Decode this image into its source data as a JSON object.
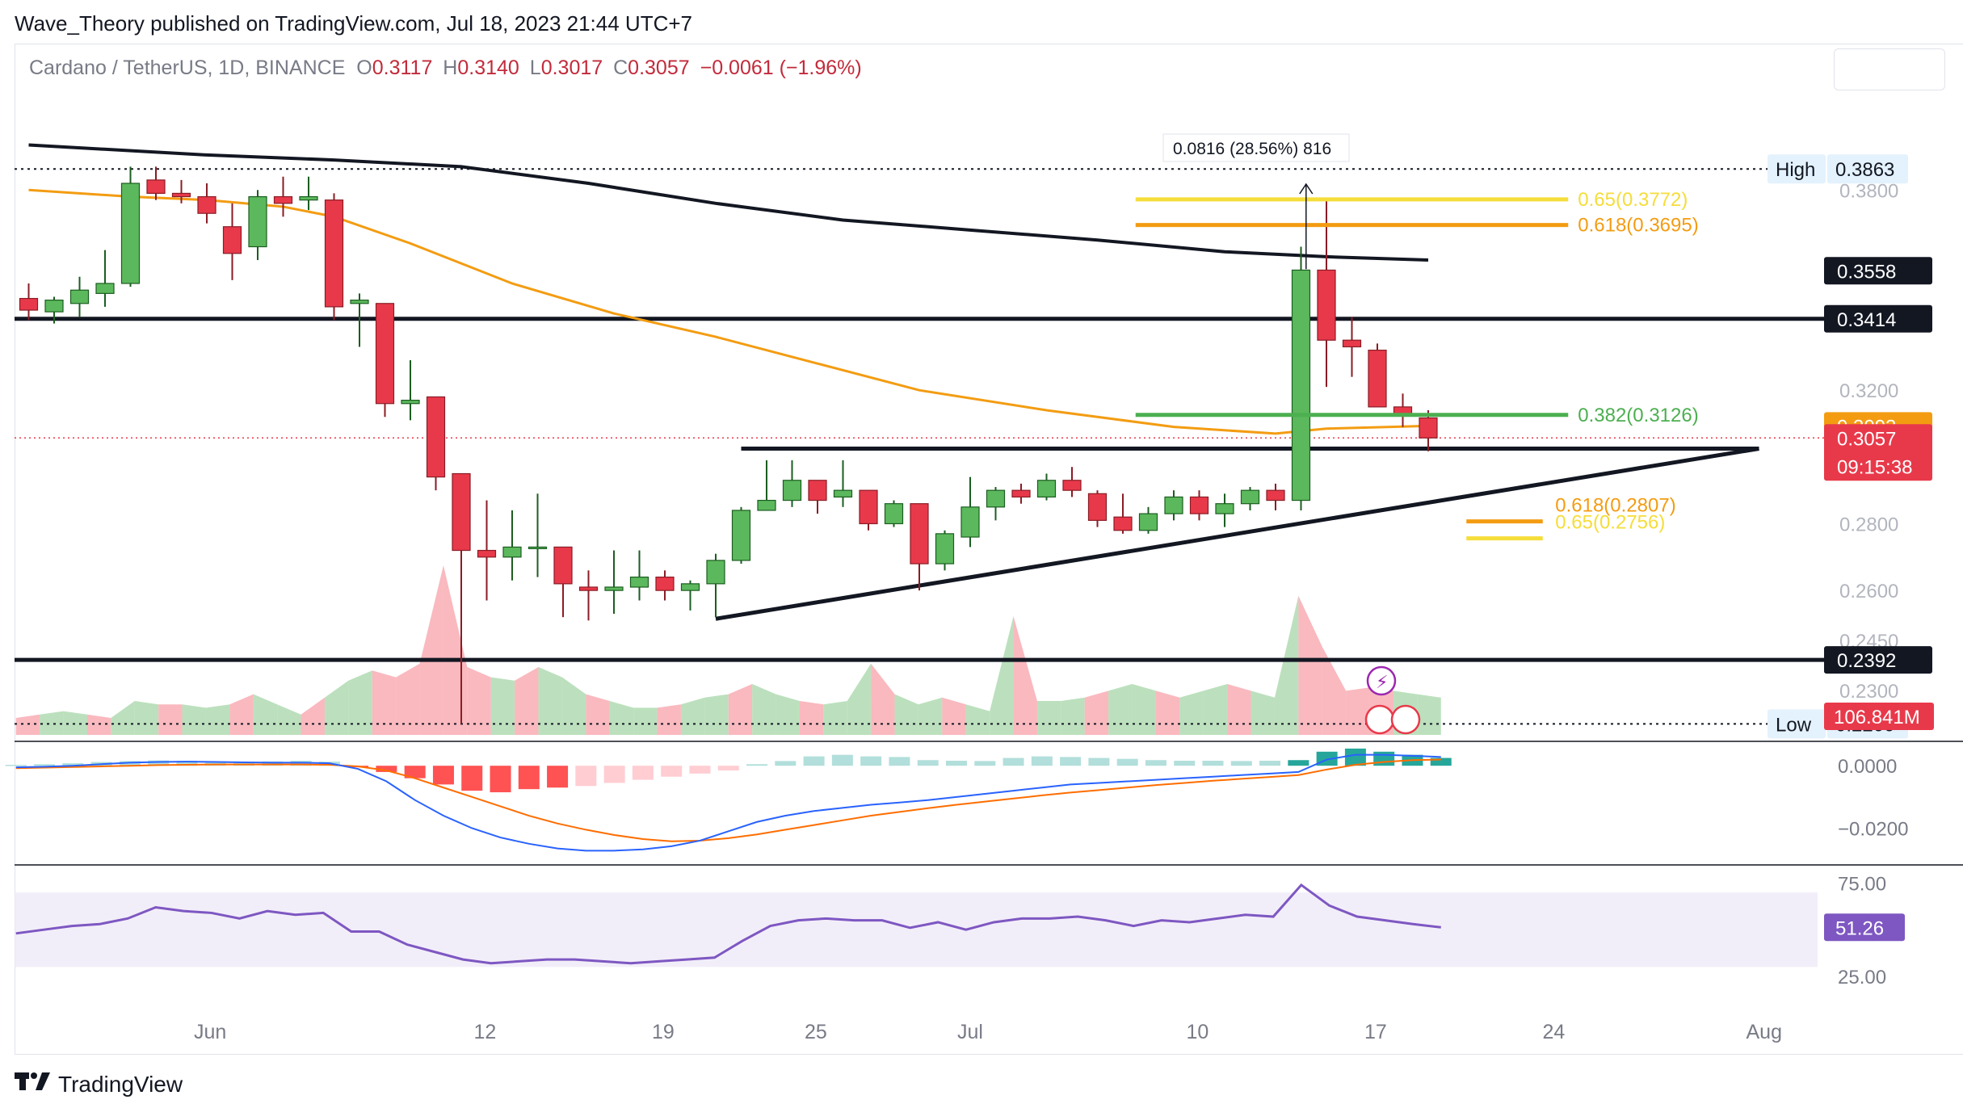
{
  "publisher_line": "Wave_Theory published on TradingView.com, Jul 18, 2023 21:44 UTC+7",
  "symbol_title": "Cardano / TetherUS, 1D, BINANCE",
  "ohlc": {
    "o_label": "O",
    "o": "0.3117",
    "h_label": "H",
    "h": "0.3140",
    "l_label": "L",
    "l": "0.3017",
    "c_label": "C",
    "c": "0.3057",
    "change": "−0.0061 (−1.96%)"
  },
  "footer_brand": "TradingView",
  "colors": {
    "up": "#5cb85c",
    "down": "#e8394a",
    "ma_orange": "#f39c12",
    "ma_black": "#131722",
    "fib_yellow": "#f5dd3a",
    "fib_orange": "#f39c12",
    "fib_green": "#4caf50",
    "macd_line": "#2962ff",
    "signal_line": "#ff6d00",
    "rsi": "#7e57c2"
  },
  "chart_data": {
    "type": "candlestick",
    "price_axis": {
      "ylim": [
        0.2155,
        0.42
      ],
      "ticks": [
        {
          "value": 0.38,
          "label": "0.3800"
        },
        {
          "value": 0.32,
          "label": "0.3200"
        },
        {
          "value": 0.28,
          "label": "0.2800"
        },
        {
          "value": 0.26,
          "label": "0.2600"
        },
        {
          "value": 0.245,
          "label": "0.2450"
        },
        {
          "value": 0.23,
          "label": "0.2300"
        }
      ]
    },
    "time_axis": {
      "ticks": [
        {
          "day": 0,
          "label": "Jun"
        },
        {
          "day": 11,
          "label": "12"
        },
        {
          "day": 18,
          "label": "19"
        },
        {
          "day": 24,
          "label": "25"
        },
        {
          "day": 30,
          "label": "Jul"
        },
        {
          "day": 39,
          "label": "10"
        },
        {
          "day": 46,
          "label": "17"
        },
        {
          "day": 53,
          "label": "24"
        },
        {
          "day": 61,
          "label": "Aug"
        }
      ]
    },
    "candles": [
      {
        "d": -7,
        "o": 0.3475,
        "h": 0.352,
        "l": 0.341,
        "c": 0.344
      },
      {
        "d": -6,
        "o": 0.3435,
        "h": 0.348,
        "l": 0.34,
        "c": 0.347
      },
      {
        "d": -5,
        "o": 0.346,
        "h": 0.354,
        "l": 0.342,
        "c": 0.35
      },
      {
        "d": -4,
        "o": 0.349,
        "h": 0.362,
        "l": 0.345,
        "c": 0.352
      },
      {
        "d": -3,
        "o": 0.352,
        "h": 0.387,
        "l": 0.351,
        "c": 0.382
      },
      {
        "d": -2,
        "o": 0.383,
        "h": 0.387,
        "l": 0.377,
        "c": 0.379
      },
      {
        "d": -1,
        "o": 0.379,
        "h": 0.383,
        "l": 0.376,
        "c": 0.378
      },
      {
        "d": 0,
        "o": 0.378,
        "h": 0.382,
        "l": 0.37,
        "c": 0.373
      },
      {
        "d": 1,
        "o": 0.369,
        "h": 0.376,
        "l": 0.353,
        "c": 0.361
      },
      {
        "d": 2,
        "o": 0.363,
        "h": 0.38,
        "l": 0.359,
        "c": 0.378
      },
      {
        "d": 3,
        "o": 0.378,
        "h": 0.384,
        "l": 0.372,
        "c": 0.376
      },
      {
        "d": 4,
        "o": 0.377,
        "h": 0.384,
        "l": 0.374,
        "c": 0.378
      },
      {
        "d": 5,
        "o": 0.377,
        "h": 0.379,
        "l": 0.341,
        "c": 0.345
      },
      {
        "d": 6,
        "o": 0.346,
        "h": 0.349,
        "l": 0.333,
        "c": 0.347
      },
      {
        "d": 7,
        "o": 0.346,
        "h": 0.346,
        "l": 0.312,
        "c": 0.316
      },
      {
        "d": 8,
        "o": 0.316,
        "h": 0.329,
        "l": 0.311,
        "c": 0.317
      },
      {
        "d": 9,
        "o": 0.318,
        "h": 0.318,
        "l": 0.29,
        "c": 0.294
      },
      {
        "d": 10,
        "o": 0.295,
        "h": 0.295,
        "l": 0.22,
        "c": 0.272
      },
      {
        "d": 11,
        "o": 0.272,
        "h": 0.287,
        "l": 0.257,
        "c": 0.27
      },
      {
        "d": 12,
        "o": 0.27,
        "h": 0.284,
        "l": 0.263,
        "c": 0.273
      },
      {
        "d": 13,
        "o": 0.273,
        "h": 0.289,
        "l": 0.264,
        "c": 0.273
      },
      {
        "d": 14,
        "o": 0.273,
        "h": 0.273,
        "l": 0.252,
        "c": 0.262
      },
      {
        "d": 15,
        "o": 0.261,
        "h": 0.266,
        "l": 0.251,
        "c": 0.26
      },
      {
        "d": 16,
        "o": 0.26,
        "h": 0.272,
        "l": 0.253,
        "c": 0.261
      },
      {
        "d": 17,
        "o": 0.261,
        "h": 0.272,
        "l": 0.257,
        "c": 0.264
      },
      {
        "d": 18,
        "o": 0.264,
        "h": 0.266,
        "l": 0.257,
        "c": 0.26
      },
      {
        "d": 19,
        "o": 0.26,
        "h": 0.263,
        "l": 0.254,
        "c": 0.262
      },
      {
        "d": 20,
        "o": 0.262,
        "h": 0.271,
        "l": 0.252,
        "c": 0.269
      },
      {
        "d": 21,
        "o": 0.269,
        "h": 0.285,
        "l": 0.268,
        "c": 0.284
      },
      {
        "d": 22,
        "o": 0.284,
        "h": 0.299,
        "l": 0.284,
        "c": 0.287
      },
      {
        "d": 23,
        "o": 0.287,
        "h": 0.299,
        "l": 0.285,
        "c": 0.293
      },
      {
        "d": 24,
        "o": 0.293,
        "h": 0.293,
        "l": 0.283,
        "c": 0.287
      },
      {
        "d": 25,
        "o": 0.288,
        "h": 0.299,
        "l": 0.285,
        "c": 0.29
      },
      {
        "d": 26,
        "o": 0.29,
        "h": 0.29,
        "l": 0.278,
        "c": 0.28
      },
      {
        "d": 27,
        "o": 0.28,
        "h": 0.287,
        "l": 0.279,
        "c": 0.286
      },
      {
        "d": 28,
        "o": 0.286,
        "h": 0.286,
        "l": 0.26,
        "c": 0.268
      },
      {
        "d": 29,
        "o": 0.268,
        "h": 0.278,
        "l": 0.266,
        "c": 0.277
      },
      {
        "d": 30,
        "o": 0.276,
        "h": 0.294,
        "l": 0.273,
        "c": 0.285
      },
      {
        "d": 31,
        "o": 0.285,
        "h": 0.291,
        "l": 0.281,
        "c": 0.29
      },
      {
        "d": 32,
        "o": 0.29,
        "h": 0.292,
        "l": 0.286,
        "c": 0.288
      },
      {
        "d": 33,
        "o": 0.288,
        "h": 0.295,
        "l": 0.287,
        "c": 0.293
      },
      {
        "d": 34,
        "o": 0.293,
        "h": 0.297,
        "l": 0.288,
        "c": 0.29
      },
      {
        "d": 35,
        "o": 0.289,
        "h": 0.29,
        "l": 0.279,
        "c": 0.281
      },
      {
        "d": 36,
        "o": 0.282,
        "h": 0.289,
        "l": 0.277,
        "c": 0.278
      },
      {
        "d": 37,
        "o": 0.278,
        "h": 0.285,
        "l": 0.277,
        "c": 0.283
      },
      {
        "d": 38,
        "o": 0.283,
        "h": 0.29,
        "l": 0.281,
        "c": 0.288
      },
      {
        "d": 39,
        "o": 0.288,
        "h": 0.29,
        "l": 0.281,
        "c": 0.283
      },
      {
        "d": 40,
        "o": 0.283,
        "h": 0.289,
        "l": 0.279,
        "c": 0.286
      },
      {
        "d": 41,
        "o": 0.286,
        "h": 0.291,
        "l": 0.284,
        "c": 0.29
      },
      {
        "d": 42,
        "o": 0.29,
        "h": 0.292,
        "l": 0.284,
        "c": 0.287
      },
      {
        "d": 43,
        "o": 0.287,
        "h": 0.363,
        "l": 0.284,
        "c": 0.356
      },
      {
        "d": 44,
        "o": 0.356,
        "h": 0.377,
        "l": 0.321,
        "c": 0.335
      },
      {
        "d": 45,
        "o": 0.335,
        "h": 0.342,
        "l": 0.324,
        "c": 0.333
      },
      {
        "d": 46,
        "o": 0.332,
        "h": 0.334,
        "l": 0.316,
        "c": 0.315
      },
      {
        "d": 47,
        "o": 0.315,
        "h": 0.319,
        "l": 0.309,
        "c": 0.313
      },
      {
        "d": 48,
        "o": 0.3117,
        "h": 0.314,
        "l": 0.3017,
        "c": 0.3057
      }
    ],
    "ma_black": [
      {
        "d": -7,
        "v": 0.3935
      },
      {
        "d": 0,
        "v": 0.3905
      },
      {
        "d": 5,
        "v": 0.389
      },
      {
        "d": 10,
        "v": 0.387
      },
      {
        "d": 15,
        "v": 0.382
      },
      {
        "d": 20,
        "v": 0.376
      },
      {
        "d": 25,
        "v": 0.371
      },
      {
        "d": 30,
        "v": 0.368
      },
      {
        "d": 35,
        "v": 0.365
      },
      {
        "d": 40,
        "v": 0.3615
      },
      {
        "d": 44,
        "v": 0.36
      },
      {
        "d": 48,
        "v": 0.359
      }
    ],
    "ma_orange": [
      {
        "d": -7,
        "v": 0.38
      },
      {
        "d": -3,
        "v": 0.378
      },
      {
        "d": 0,
        "v": 0.377
      },
      {
        "d": 3,
        "v": 0.375
      },
      {
        "d": 5,
        "v": 0.372
      },
      {
        "d": 8,
        "v": 0.364
      },
      {
        "d": 12,
        "v": 0.352
      },
      {
        "d": 16,
        "v": 0.343
      },
      {
        "d": 20,
        "v": 0.336
      },
      {
        "d": 24,
        "v": 0.328
      },
      {
        "d": 28,
        "v": 0.32
      },
      {
        "d": 33,
        "v": 0.314
      },
      {
        "d": 38,
        "v": 0.309
      },
      {
        "d": 42,
        "v": 0.307
      },
      {
        "d": 44,
        "v": 0.3085
      },
      {
        "d": 48,
        "v": 0.3093
      }
    ],
    "horizontal_levels": [
      {
        "value": 0.3414,
        "label": "0.3414",
        "style": "black-thick"
      },
      {
        "value": 0.2392,
        "label": "0.2392",
        "style": "black-thick"
      }
    ],
    "high_line": {
      "value": 0.3863,
      "name": "High",
      "label": "0.3863"
    },
    "low_line": {
      "value": 0.22,
      "name": "Low",
      "label": "0.2200"
    },
    "current_price_line": {
      "value": 0.3057
    },
    "fib_levels": [
      {
        "text": "0.65(0.3772)",
        "value": 0.3772,
        "color": "#f5dd3a",
        "d0": 36.5,
        "d1": 53.5
      },
      {
        "text": "0.618(0.3695)",
        "value": 0.3695,
        "color": "#f39c12",
        "d0": 36.5,
        "d1": 53.5
      },
      {
        "text": "0.382(0.3126)",
        "value": 0.3126,
        "color": "#4caf50",
        "d0": 36.5,
        "d1": 53.5
      },
      {
        "text": "0.618(0.2807)",
        "value": 0.2807,
        "color": "#f39c12",
        "d0": 49.5,
        "d1": 52.5
      },
      {
        "text": "0.65(0.2756)",
        "value": 0.2756,
        "color": "#f5dd3a",
        "d0": 49.5,
        "d1": 52.5
      }
    ],
    "resistance_line": {
      "d0": 21,
      "d1": 61,
      "value": 0.3025
    },
    "support_line": {
      "d0": 20,
      "v0": 0.2515,
      "d1": 61,
      "v1": 0.3025
    },
    "measure_label": "0.0816 (28.56%) 816",
    "price_badges": [
      {
        "value": 0.3558,
        "label": "0.3558",
        "bg": "#131722",
        "fg": "#ffffff"
      },
      {
        "value": 0.3414,
        "label": "0.3414",
        "bg": "#131722",
        "fg": "#ffffff"
      },
      {
        "value": 0.3093,
        "label": "0.3093",
        "bg": "#f39c12",
        "fg": "#ffffff"
      },
      {
        "value": 0.3057,
        "label": "0.3057",
        "bg": "#e8394a",
        "fg": "#ffffff",
        "sub": "09:15:38"
      },
      {
        "value": 0.2392,
        "label": "0.2392",
        "bg": "#131722",
        "fg": "#ffffff"
      }
    ],
    "volume": {
      "badge": "106.841M",
      "values": [
        0.1,
        0.12,
        0.14,
        0.12,
        0.1,
        0.2,
        0.18,
        0.18,
        0.16,
        0.18,
        0.24,
        0.18,
        0.12,
        0.22,
        0.32,
        0.38,
        0.34,
        0.42,
        1.0,
        0.4,
        0.34,
        0.32,
        0.4,
        0.34,
        0.24,
        0.2,
        0.16,
        0.16,
        0.18,
        0.22,
        0.24,
        0.3,
        0.24,
        0.2,
        0.18,
        0.2,
        0.42,
        0.24,
        0.18,
        0.22,
        0.18,
        0.14,
        0.7,
        0.2,
        0.2,
        0.22,
        0.26,
        0.3,
        0.26,
        0.22,
        0.26,
        0.3,
        0.26,
        0.22,
        0.82,
        0.52,
        0.26,
        0.28,
        0.26,
        0.24,
        0.22
      ]
    },
    "macd": {
      "ticks": [
        {
          "value": 0.0,
          "label": "0.0000"
        },
        {
          "value": -0.02,
          "label": "−0.0200"
        }
      ],
      "ylim": [
        -0.031,
        0.006
      ],
      "hist": [
        0.0003,
        0.0005,
        0.0008,
        0.0012,
        0.0015,
        0.0017,
        0.0016,
        0.0012,
        0.0011,
        0.0014,
        0.0016,
        0.0013,
        -0.0005,
        -0.002,
        -0.004,
        -0.006,
        -0.008,
        -0.0085,
        -0.0075,
        -0.007,
        -0.0065,
        -0.0055,
        -0.0045,
        -0.0035,
        -0.0025,
        -0.0015,
        0.0005,
        0.0015,
        0.003,
        0.0035,
        0.003,
        0.0028,
        0.0018,
        0.0016,
        0.0015,
        0.0025,
        0.003,
        0.0028,
        0.0025,
        0.0022,
        0.0018,
        0.0016,
        0.0016,
        0.0015,
        0.0016,
        0.0018,
        0.0045,
        0.0055,
        0.0045,
        0.0035,
        0.0025
      ],
      "macd_line": [
        -0.0005,
        -0.0003,
        0.0,
        0.0005,
        0.001,
        0.0012,
        0.0013,
        0.0012,
        0.0011,
        0.001,
        0.001,
        0.0008,
        -0.001,
        -0.005,
        -0.011,
        -0.016,
        -0.02,
        -0.023,
        -0.025,
        -0.0265,
        -0.0272,
        -0.0272,
        -0.0268,
        -0.0258,
        -0.024,
        -0.021,
        -0.018,
        -0.016,
        -0.0145,
        -0.0135,
        -0.0125,
        -0.0118,
        -0.011,
        -0.01,
        -0.009,
        -0.008,
        -0.007,
        -0.006,
        -0.0055,
        -0.005,
        -0.0045,
        -0.004,
        -0.0035,
        -0.003,
        -0.0025,
        -0.002,
        0.002,
        0.0035,
        0.0035,
        0.0032,
        0.0028
      ],
      "signal_line": [
        -0.0008,
        -0.0006,
        -0.0004,
        -0.0002,
        0.0,
        0.0002,
        0.0003,
        0.0004,
        0.0004,
        0.0004,
        0.0004,
        0.0003,
        -0.0002,
        -0.0015,
        -0.004,
        -0.007,
        -0.01,
        -0.013,
        -0.016,
        -0.0185,
        -0.0205,
        -0.0222,
        -0.0235,
        -0.0242,
        -0.024,
        -0.0232,
        -0.022,
        -0.0205,
        -0.019,
        -0.0175,
        -0.016,
        -0.0148,
        -0.0136,
        -0.0125,
        -0.0115,
        -0.0105,
        -0.0095,
        -0.0086,
        -0.0078,
        -0.007,
        -0.0062,
        -0.0055,
        -0.0048,
        -0.0042,
        -0.0036,
        -0.003,
        -0.0012,
        0.0003,
        0.0012,
        0.0018,
        0.002
      ]
    },
    "rsi": {
      "ticks": [
        {
          "value": 75,
          "label": "75.00"
        },
        {
          "value": 25,
          "label": "25.00"
        }
      ],
      "ylim": [
        18,
        80
      ],
      "band": [
        30,
        70
      ],
      "badge": "51.26",
      "values": [
        48,
        50,
        52,
        53,
        56,
        62,
        60,
        59,
        56,
        60,
        58,
        59,
        49,
        49,
        42,
        38,
        34,
        32,
        33,
        34,
        34,
        33,
        32,
        33,
        34,
        35,
        44,
        52,
        55,
        56,
        55,
        55,
        51,
        54,
        50,
        54,
        56,
        56,
        57,
        55,
        52,
        55,
        54,
        56,
        58,
        57,
        74,
        63,
        57,
        55,
        53,
        51.26
      ]
    }
  }
}
